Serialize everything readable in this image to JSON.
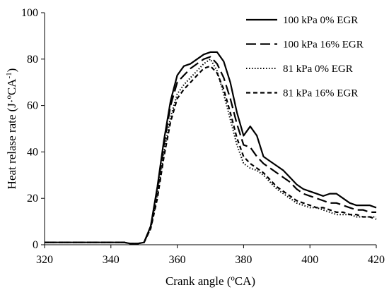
{
  "chart_data": {
    "type": "line",
    "title": "",
    "xlabel": "Crank angle (ºCA)",
    "ylabel": "Heat relase rate (J·ºCA",
    "ylabel_sup": "-1",
    "ylabel_suffix": ")",
    "xlim": [
      320,
      420
    ],
    "ylim": [
      0,
      100
    ],
    "xticks": [
      320,
      340,
      360,
      380,
      400,
      420
    ],
    "yticks": [
      0,
      20,
      40,
      60,
      80,
      100
    ],
    "grid": false,
    "legend_position": "top-right",
    "series": [
      {
        "name": "100 kPa 0% EGR",
        "style": "solid",
        "x": [
          320,
          330,
          340,
          344,
          346,
          348,
          350,
          352,
          354,
          356,
          358,
          360,
          362,
          364,
          366,
          368,
          370,
          372,
          374,
          376,
          378,
          380,
          382,
          384,
          386,
          388,
          390,
          392,
          394,
          396,
          398,
          400,
          402,
          404,
          406,
          408,
          410,
          412,
          414,
          416,
          418,
          420
        ],
        "y": [
          1,
          1,
          1,
          1,
          0.5,
          0.5,
          1,
          8,
          25,
          45,
          62,
          73,
          77,
          78,
          80,
          82,
          83,
          83,
          79,
          70,
          57,
          47,
          51,
          47,
          38,
          36,
          34,
          32,
          29,
          26,
          24,
          23,
          22,
          21,
          22,
          22,
          20,
          18,
          17,
          17,
          17,
          16
        ]
      },
      {
        "name": "100 kPa 16% EGR",
        "style": "long-dash",
        "x": [
          320,
          330,
          340,
          344,
          346,
          348,
          350,
          352,
          354,
          356,
          358,
          360,
          362,
          364,
          366,
          368,
          370,
          372,
          374,
          376,
          378,
          380,
          382,
          384,
          386,
          388,
          390,
          392,
          394,
          396,
          398,
          400,
          402,
          404,
          406,
          408,
          410,
          412,
          414,
          416,
          418,
          420
        ],
        "y": [
          1,
          1,
          1,
          1,
          0.5,
          0.5,
          1,
          8,
          24,
          43,
          60,
          70,
          73,
          76,
          78,
          80,
          81,
          78,
          72,
          63,
          52,
          43,
          42,
          38,
          35,
          33,
          31,
          29,
          27,
          24,
          22,
          21,
          20,
          19,
          18,
          18,
          17,
          16,
          15,
          15,
          14,
          14
        ]
      },
      {
        "name": "81 kPa 0% EGR",
        "style": "dotted",
        "x": [
          320,
          330,
          340,
          344,
          346,
          348,
          350,
          352,
          354,
          356,
          358,
          360,
          362,
          364,
          366,
          368,
          370,
          372,
          374,
          376,
          378,
          380,
          382,
          384,
          386,
          388,
          390,
          392,
          394,
          396,
          398,
          400,
          402,
          404,
          406,
          408,
          410,
          412,
          414,
          416,
          418,
          420
        ],
        "y": [
          1,
          1,
          1,
          1,
          0.5,
          0.5,
          1,
          7,
          21,
          40,
          55,
          65,
          69,
          72,
          75,
          78,
          80,
          75,
          65,
          54,
          43,
          35,
          33,
          32,
          30,
          27,
          24,
          22,
          20,
          18,
          17,
          16,
          16,
          15,
          14,
          13,
          13,
          13,
          12,
          12,
          12,
          12
        ]
      },
      {
        "name": "81 kPa 16% EGR",
        "style": "short-dash",
        "x": [
          320,
          330,
          340,
          344,
          346,
          348,
          350,
          352,
          354,
          356,
          358,
          360,
          362,
          364,
          366,
          368,
          370,
          372,
          374,
          376,
          378,
          380,
          382,
          384,
          386,
          388,
          390,
          392,
          394,
          396,
          398,
          400,
          402,
          404,
          406,
          408,
          410,
          412,
          414,
          416,
          418,
          420
        ],
        "y": [
          1,
          1,
          1,
          1,
          0.5,
          0.5,
          1,
          7,
          20,
          38,
          53,
          63,
          67,
          70,
          73,
          76,
          77,
          74,
          67,
          57,
          46,
          38,
          35,
          33,
          31,
          28,
          25,
          23,
          21,
          19,
          18,
          17,
          16,
          16,
          15,
          14,
          14,
          13,
          13,
          12,
          12,
          11
        ]
      }
    ]
  }
}
